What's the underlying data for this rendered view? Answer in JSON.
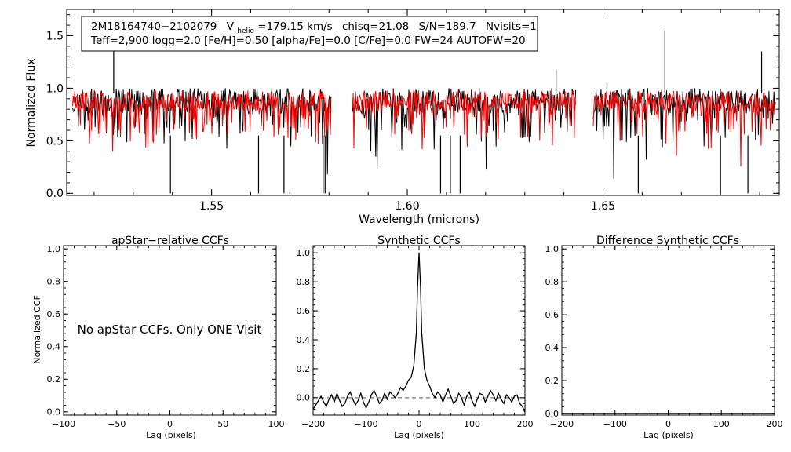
{
  "chart_data": [
    {
      "type": "line",
      "title": "",
      "xlabel": "Wavelength (microns)",
      "ylabel": "Normalized Flux",
      "xlim": [
        1.513,
        1.695
      ],
      "ylim": [
        -0.02,
        1.75
      ],
      "xticks": [
        1.55,
        1.6,
        1.65
      ],
      "xtick_labels": [
        "1.55",
        "1.60",
        "1.65"
      ],
      "yticks": [
        0.0,
        0.5,
        1.0,
        1.5
      ],
      "ytick_labels": [
        "0.0",
        "0.5",
        "1.0",
        "1.5"
      ],
      "legend": {
        "star_id": "2M18164740−2102079",
        "vhelio_prefix": "V",
        "vhelio_subscript": "helio",
        "vhelio_value": "=179.15 km/s",
        "chisq": "chisq=21.08",
        "snr": "S/N=189.7",
        "nvisits": "Nvisits=1",
        "params": "Teff=2,900 logg=2.0 [Fe/H]=0.50 [alpha/Fe]=0.0 [C/Fe]=0.0 FW=24 AUTOFW=20"
      },
      "chips": [
        [
          1.5145,
          1.5805
        ],
        [
          1.586,
          1.643
        ],
        [
          1.6475,
          1.694
        ]
      ],
      "series": [
        {
          "name": "observed spectrum",
          "color": "#000000",
          "continuum": 0.88,
          "scatter": 0.12,
          "seed": 11,
          "deep_lines": [
            [
              1.5395,
              0.0
            ],
            [
              1.562,
              0.0
            ],
            [
              1.5685,
              0.0
            ],
            [
              1.5785,
              0.0
            ],
            [
              1.579,
              0.0
            ],
            [
              1.6085,
              0.0
            ],
            [
              1.611,
              0.0
            ],
            [
              1.6135,
              0.0
            ],
            [
              1.659,
              0.0
            ],
            [
              1.68,
              0.0
            ],
            [
              1.687,
              0.0
            ]
          ],
          "spikes": [
            [
              1.525,
              1.35
            ],
            [
              1.638,
              1.18
            ],
            [
              1.6658,
              1.55
            ],
            [
              1.6905,
              1.35
            ],
            [
              1.651,
              1.06
            ]
          ]
        },
        {
          "name": "synthetic model",
          "color": "#ff0000",
          "continuum": 0.88,
          "scatter": 0.1,
          "seed": 29,
          "deep_lines": [],
          "spikes": []
        }
      ]
    },
    {
      "type": "line",
      "title": "apStar−relative CCFs",
      "xlabel": "Lag (pixels)",
      "ylabel": "Normalized CCF",
      "xlim": [
        -100,
        100
      ],
      "ylim": [
        -0.02,
        1.02
      ],
      "xticks": [
        -100,
        -50,
        0,
        50,
        100
      ],
      "xtick_labels": [
        "−100",
        "−50",
        "0",
        "50",
        "100"
      ],
      "yticks": [
        0.0,
        0.2,
        0.4,
        0.6,
        0.8,
        1.0
      ],
      "ytick_labels": [
        "0.0",
        "0.2",
        "0.4",
        "0.6",
        "0.8",
        "1.0"
      ],
      "annotation": "No apStar CCFs.  Only ONE Visit",
      "series": []
    },
    {
      "type": "line",
      "title": "Synthetic CCFs",
      "xlabel": "Lag (pixels)",
      "ylabel": "",
      "xlim": [
        -200,
        200
      ],
      "ylim": [
        -0.12,
        1.05
      ],
      "xticks": [
        -200,
        -100,
        0,
        100,
        200
      ],
      "xtick_labels": [
        "−200",
        "−100",
        "0",
        "100",
        "200"
      ],
      "yticks": [
        0.0,
        0.2,
        0.4,
        0.6,
        0.8,
        1.0
      ],
      "ytick_labels": [
        "0.0",
        "0.2",
        "0.4",
        "0.6",
        "0.8",
        "1.0"
      ],
      "reference_line": {
        "y": 0.0,
        "style": "dashed"
      },
      "series": [
        {
          "name": "CCF",
          "color": "#000000",
          "x": [
            -200,
            -195,
            -190,
            -185,
            -180,
            -175,
            -170,
            -165,
            -160,
            -155,
            -150,
            -145,
            -140,
            -135,
            -130,
            -125,
            -120,
            -115,
            -110,
            -105,
            -100,
            -95,
            -90,
            -85,
            -80,
            -75,
            -70,
            -65,
            -60,
            -55,
            -50,
            -45,
            -40,
            -35,
            -30,
            -25,
            -20,
            -15,
            -10,
            -5,
            -3,
            0,
            3,
            5,
            10,
            15,
            20,
            25,
            30,
            35,
            40,
            45,
            50,
            55,
            60,
            65,
            70,
            75,
            80,
            85,
            90,
            95,
            100,
            105,
            110,
            115,
            120,
            125,
            130,
            135,
            140,
            145,
            150,
            155,
            160,
            165,
            170,
            175,
            180,
            185,
            190,
            195,
            200
          ],
          "y": [
            -0.08,
            -0.05,
            -0.02,
            0.01,
            -0.03,
            -0.06,
            -0.01,
            0.02,
            -0.03,
            0.03,
            -0.02,
            -0.06,
            -0.04,
            0.01,
            0.04,
            -0.01,
            -0.05,
            -0.02,
            0.03,
            -0.03,
            -0.07,
            -0.03,
            0.02,
            0.05,
            0.01,
            -0.04,
            -0.02,
            0.03,
            -0.01,
            0.04,
            0.02,
            0.0,
            0.03,
            0.07,
            0.05,
            0.08,
            0.12,
            0.14,
            0.22,
            0.45,
            0.75,
            1.0,
            0.75,
            0.45,
            0.2,
            0.12,
            0.08,
            0.03,
            0.0,
            0.04,
            0.02,
            -0.03,
            0.02,
            0.06,
            0.01,
            -0.04,
            -0.02,
            0.03,
            0.0,
            -0.05,
            0.01,
            0.04,
            -0.02,
            -0.06,
            -0.01,
            0.03,
            0.02,
            -0.03,
            0.01,
            0.05,
            0.02,
            -0.02,
            0.03,
            -0.01,
            -0.04,
            0.02,
            0.0,
            -0.03,
            0.01,
            0.02,
            -0.04,
            -0.06,
            -0.1
          ]
        }
      ]
    },
    {
      "type": "line",
      "title": "Difference Synthetic CCFs",
      "xlabel": "Lag (pixels)",
      "ylabel": "",
      "xlim": [
        -200,
        200
      ],
      "ylim": [
        -0.01,
        1.02
      ],
      "xticks": [
        -200,
        -100,
        0,
        100,
        200
      ],
      "xtick_labels": [
        "−200",
        "−100",
        "0",
        "100",
        "200"
      ],
      "yticks": [
        0.0,
        0.2,
        0.4,
        0.6,
        0.8,
        1.0
      ],
      "ytick_labels": [
        "0.0",
        "0.2",
        "0.4",
        "0.6",
        "0.8",
        "1.0"
      ],
      "series": [
        {
          "name": "difference",
          "color": "#000000",
          "x": [
            -200,
            200
          ],
          "y": [
            0.0,
            0.0
          ]
        }
      ]
    }
  ]
}
